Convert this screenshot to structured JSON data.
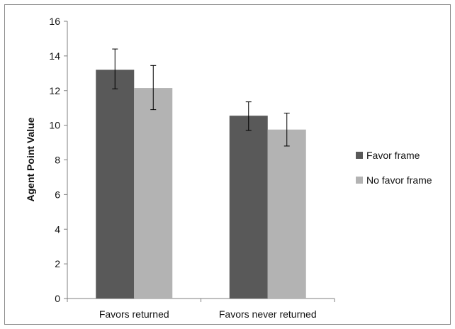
{
  "chart_data": {
    "type": "bar",
    "title": "",
    "xlabel": "",
    "ylabel": "Agent Point Value",
    "ylim": [
      0,
      16
    ],
    "yticks": [
      0,
      2,
      4,
      6,
      8,
      10,
      12,
      14,
      16
    ],
    "categories": [
      "Favors returned",
      "Favors never returned"
    ],
    "series": [
      {
        "name": "Favor frame",
        "color": "#595959",
        "values": [
          13.2,
          10.55
        ],
        "error_low": [
          12.1,
          9.7
        ],
        "error_high": [
          14.4,
          11.35
        ]
      },
      {
        "name": "No favor frame",
        "color": "#b3b3b3",
        "values": [
          12.15,
          9.75
        ],
        "error_low": [
          10.9,
          8.8
        ],
        "error_high": [
          13.45,
          10.7
        ]
      }
    ],
    "grid": false,
    "legend_position": "right"
  }
}
